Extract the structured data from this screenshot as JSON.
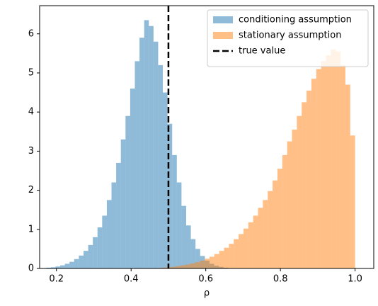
{
  "chart_data": {
    "type": "histogram",
    "xlabel": "ρ",
    "xlim": [
      0.155,
      1.05
    ],
    "ylim": [
      0,
      6.72
    ],
    "xticks": [
      0.2,
      0.4,
      0.6,
      0.8,
      {
        "value": 1,
        "label": "1.0"
      }
    ],
    "yticks": [
      0,
      1,
      2,
      3,
      4,
      5,
      6
    ],
    "legend": "upper right",
    "alpha": 0.5,
    "series": [
      {
        "name": "conditioning assumption",
        "color": "#1f77b4",
        "bins": [
          0.16,
          0.1725,
          0.185,
          0.1975,
          0.21,
          0.2225,
          0.235,
          0.2475,
          0.26,
          0.2725,
          0.285,
          0.2975,
          0.31,
          0.3225,
          0.335,
          0.3475,
          0.36,
          0.3725,
          0.385,
          0.3975,
          0.41,
          0.4225,
          0.435,
          0.4475,
          0.46,
          0.4725,
          0.485,
          0.4975,
          0.51,
          0.5225,
          0.535,
          0.5475,
          0.56,
          0.5725,
          0.585,
          0.5975,
          0.61,
          0.6225,
          0.635,
          0.6475,
          0.66
        ],
        "values": [
          0.01,
          0.02,
          0.03,
          0.05,
          0.08,
          0.12,
          0.17,
          0.24,
          0.33,
          0.45,
          0.6,
          0.8,
          1.05,
          1.35,
          1.75,
          2.2,
          2.7,
          3.3,
          3.9,
          4.6,
          5.3,
          5.9,
          6.35,
          6.2,
          5.8,
          5.2,
          4.5,
          3.7,
          2.9,
          2.2,
          1.6,
          1.1,
          0.75,
          0.5,
          0.32,
          0.2,
          0.12,
          0.07,
          0.04,
          0.02
        ]
      },
      {
        "name": "stationary assumption",
        "color": "#ff7f0e",
        "bins": [
          0.48,
          0.493,
          0.506,
          0.519,
          0.532,
          0.545,
          0.558,
          0.571,
          0.584,
          0.597,
          0.61,
          0.623,
          0.636,
          0.649,
          0.662,
          0.675,
          0.688,
          0.701,
          0.714,
          0.727,
          0.74,
          0.753,
          0.766,
          0.779,
          0.792,
          0.805,
          0.818,
          0.831,
          0.844,
          0.857,
          0.87,
          0.883,
          0.896,
          0.909,
          0.922,
          0.935,
          0.948,
          0.961,
          0.974,
          0.987,
          1.0
        ],
        "values": [
          0.02,
          0.03,
          0.04,
          0.06,
          0.08,
          0.1,
          0.13,
          0.16,
          0.2,
          0.25,
          0.3,
          0.37,
          0.45,
          0.53,
          0.63,
          0.75,
          0.88,
          1.02,
          1.18,
          1.35,
          1.55,
          1.75,
          1.98,
          2.25,
          2.55,
          2.9,
          3.25,
          3.55,
          3.9,
          4.25,
          4.55,
          4.85,
          5.1,
          5.3,
          5.45,
          5.6,
          5.55,
          5.2,
          4.7,
          3.4
        ]
      }
    ],
    "vline": {
      "name": "true value",
      "x": 0.5,
      "color": "#000000"
    }
  }
}
